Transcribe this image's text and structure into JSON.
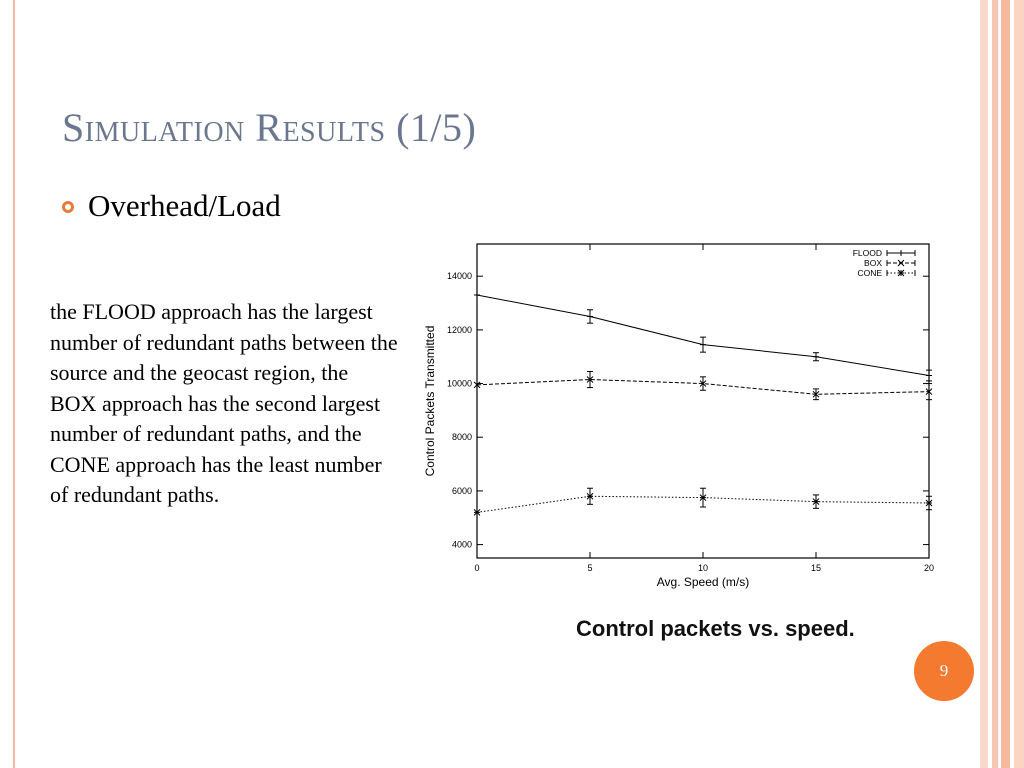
{
  "slide": {
    "title": "Simulation Results (1/5)",
    "bullet": "Overhead/Load",
    "body": "the FLOOD approach has the largest number of redundant paths between the source and the geocast region, the BOX approach has the second largest number of redundant paths, and the CONE approach has the least number of redundant paths.",
    "caption": "Control packets vs.  speed.",
    "page_number": "9",
    "bullet_icon": "hollow-circle-bullet"
  },
  "colors": {
    "title": "#6b778f",
    "accent": "#f37a2e",
    "frame": "#f3b9a6"
  },
  "chart_data": {
    "type": "line",
    "xlabel": "Avg. Speed (m/s)",
    "ylabel": "Control Packets Transmitted",
    "x": [
      0,
      5,
      10,
      15,
      20
    ],
    "xlim": [
      0,
      20
    ],
    "ylim": [
      3500,
      15200
    ],
    "xticks": [
      0,
      5,
      10,
      15,
      20
    ],
    "yticks": [
      4000,
      6000,
      8000,
      10000,
      12000,
      14000
    ],
    "grid": false,
    "legend_position": "top-right",
    "series": [
      {
        "name": "FLOOD",
        "values": [
          13300,
          12500,
          11450,
          11000,
          10300
        ],
        "errors": [
          0,
          250,
          280,
          150,
          200
        ],
        "dash": "solid",
        "marker": "plus"
      },
      {
        "name": "BOX",
        "values": [
          9950,
          10150,
          10000,
          9600,
          9700
        ],
        "errors": [
          0,
          300,
          250,
          200,
          300
        ],
        "dash": "dashed",
        "marker": "x"
      },
      {
        "name": "CONE",
        "values": [
          5200,
          5800,
          5750,
          5600,
          5550
        ],
        "errors": [
          0,
          300,
          350,
          250,
          250
        ],
        "dash": "dotted",
        "marker": "star"
      }
    ]
  }
}
